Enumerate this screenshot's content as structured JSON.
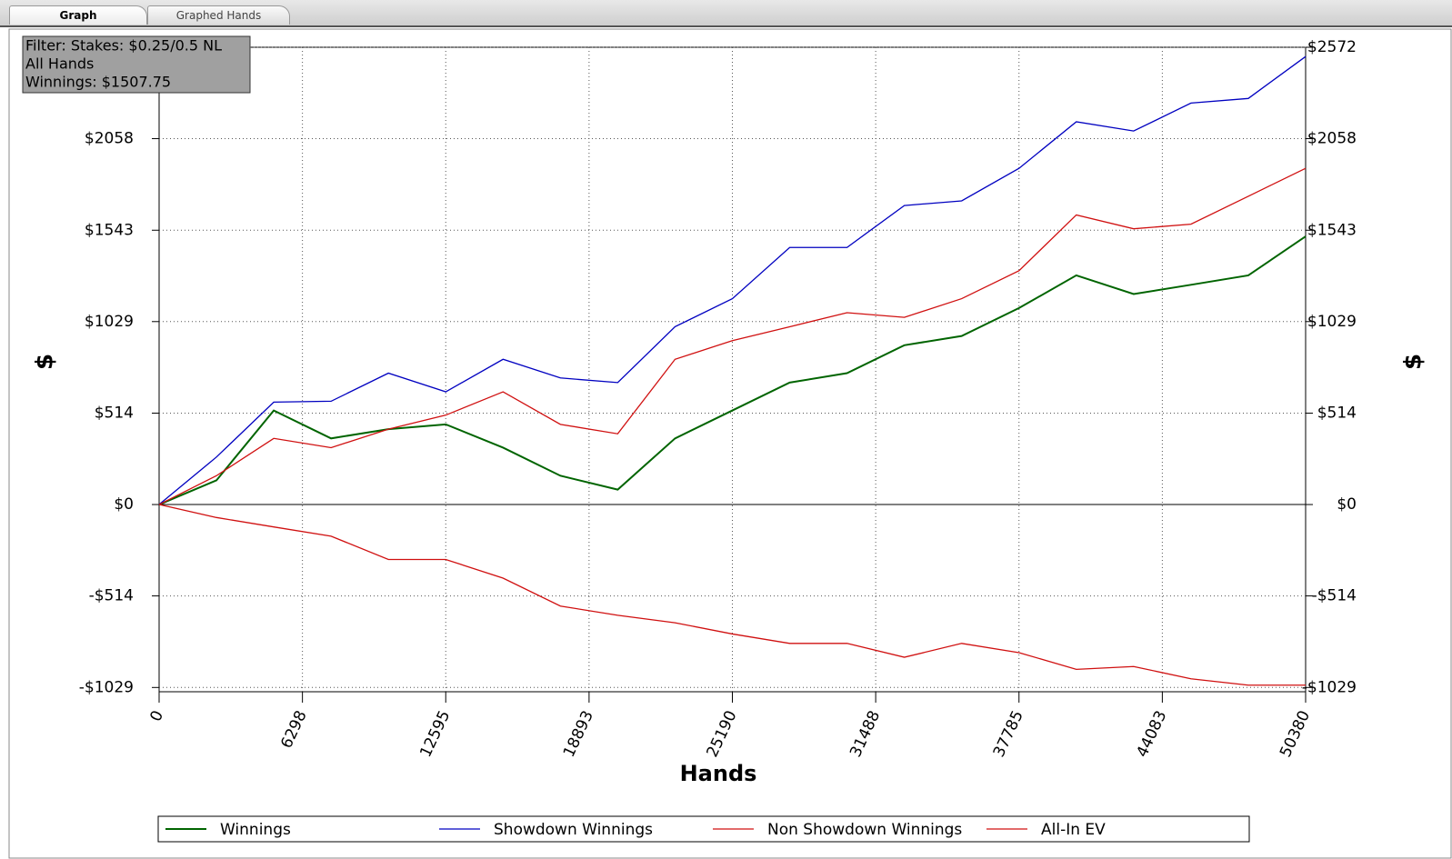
{
  "tabs": [
    "Graph",
    "Graphed Hands"
  ],
  "chart_data": {
    "type": "line",
    "x_label": "Hands",
    "y_label": "$",
    "annotations": [
      "Filter: Stakes: $0.25/0.5 NL",
      "All Hands",
      "Winnings: $1507.75"
    ],
    "x": [
      0,
      2519,
      5038,
      7557,
      10076,
      12595,
      15114,
      17633,
      20152,
      22671,
      25190,
      27709,
      30228,
      32747,
      35266,
      37785,
      40304,
      42823,
      45342,
      47861,
      50380
    ],
    "xlim": [
      0,
      50380
    ],
    "xticks": [
      0,
      6298,
      12595,
      18893,
      25190,
      31488,
      37785,
      44083,
      50380
    ],
    "ylim": [
      -1053,
      2572
    ],
    "yticks": [
      {
        "value": -1029,
        "label": "-$1029"
      },
      {
        "value": -514,
        "label": "-$514"
      },
      {
        "value": 0,
        "label": "$0"
      },
      {
        "value": 514,
        "label": "$514"
      },
      {
        "value": 1029,
        "label": "$1029"
      },
      {
        "value": 1543,
        "label": "$1543"
      },
      {
        "value": 2058,
        "label": "$2058"
      },
      {
        "value": 2572,
        "label": "$2572"
      }
    ],
    "grid": true,
    "legend": "bottom",
    "series": [
      {
        "name": "Winnings",
        "color": "#006400",
        "values": [
          0,
          136,
          529,
          372,
          424,
          451,
          320,
          162,
          84,
          372,
          529,
          686,
          739,
          896,
          948,
          1105,
          1289,
          1184,
          1236,
          1289,
          1508
        ]
      },
      {
        "name": "Showdown Winnings",
        "color": "#0000c0",
        "values": [
          0,
          267,
          576,
          581,
          739,
          634,
          817,
          712,
          686,
          1000,
          1158,
          1446,
          1446,
          1682,
          1708,
          1891,
          2153,
          2101,
          2258,
          2284,
          2520
        ]
      },
      {
        "name": "Non Showdown Winnings",
        "color": "#d01010",
        "values": [
          0,
          -73,
          -126,
          -178,
          -309,
          -309,
          -414,
          -571,
          -623,
          -665,
          -728,
          -781,
          -781,
          -859,
          -781,
          -833,
          -927,
          -911,
          -980,
          -1016,
          -1016
        ]
      },
      {
        "name": "All-In EV",
        "color": "#d01010",
        "values": [
          0,
          162,
          372,
          320,
          424,
          503,
          634,
          451,
          398,
          817,
          922,
          1000,
          1079,
          1053,
          1158,
          1315,
          1629,
          1551,
          1577,
          1734,
          1891
        ]
      }
    ]
  }
}
